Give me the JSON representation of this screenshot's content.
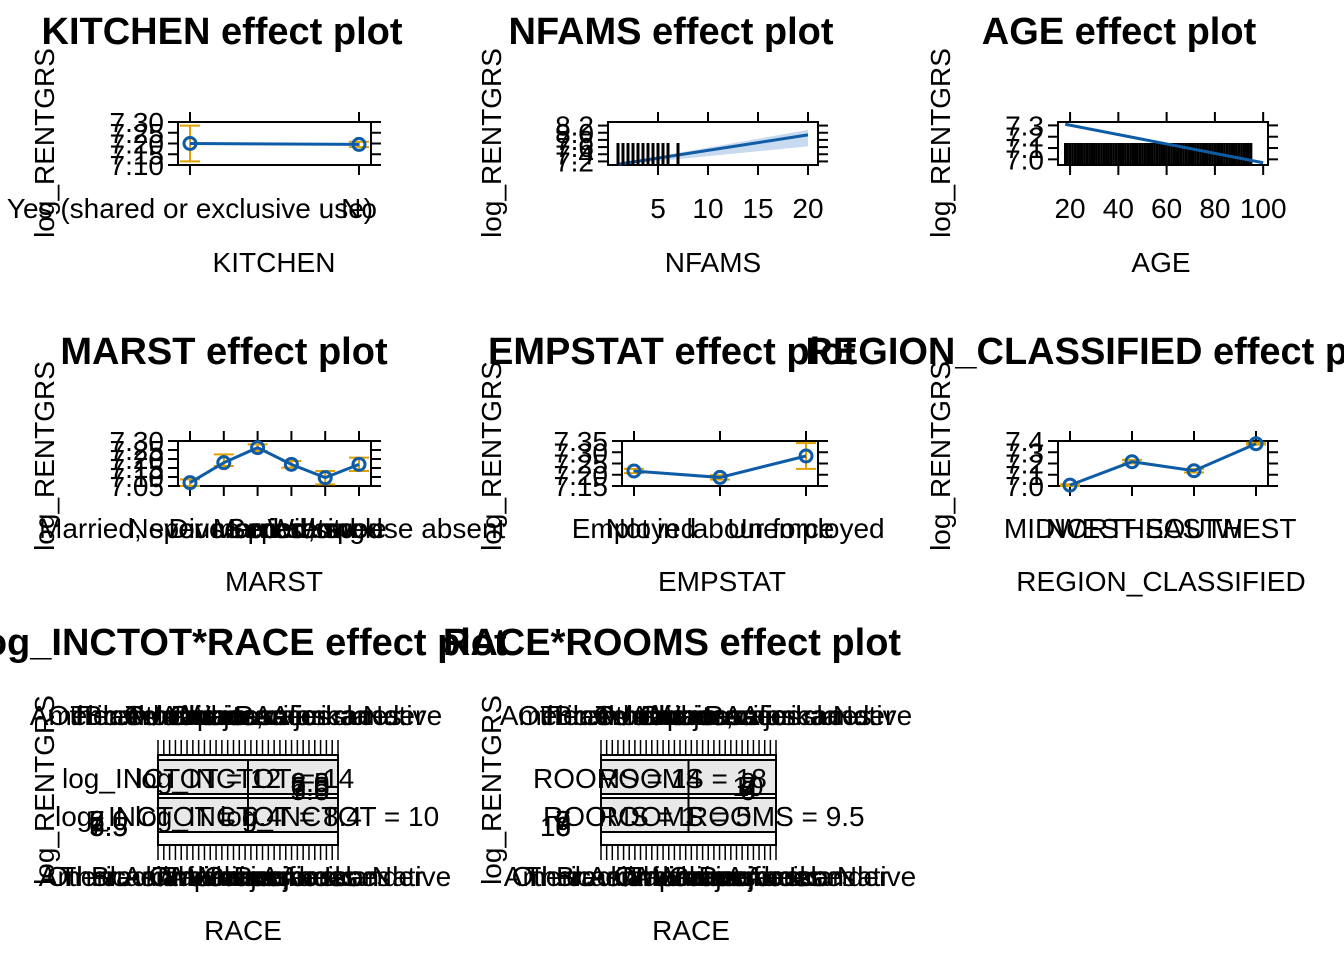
{
  "colors": {
    "line": "#0f5ca6",
    "band": "#c8daef",
    "error": "#e0a000",
    "rug": "#000000"
  },
  "panels": [
    {
      "title": "KITCHEN effect plot",
      "ylabel": "log_RENTGRS",
      "xlabel": "KITCHEN",
      "kind": "factor",
      "x_ticks": [
        "Yes (shared or exclusive use)",
        "No"
      ],
      "y_ticks": [
        "7.10",
        "7.15",
        "7.20",
        "7.25",
        "7.30"
      ]
    },
    {
      "title": "NFAMS effect plot",
      "ylabel": "log_RENTGRS",
      "xlabel": "NFAMS",
      "kind": "numeric",
      "x_ticks": [
        "5",
        "10",
        "15",
        "20"
      ],
      "y_ticks": [
        "7.2",
        "7.4",
        "7.6",
        "7.8",
        "8.0",
        "8.2"
      ]
    },
    {
      "title": "AGE effect plot",
      "ylabel": "log_RENTGRS",
      "xlabel": "AGE",
      "kind": "numeric",
      "x_ticks": [
        "20",
        "40",
        "60",
        "80",
        "100"
      ],
      "y_ticks": [
        "7.0",
        "7.1",
        "7.2",
        "7.3"
      ]
    },
    {
      "title": "MARST effect plot",
      "ylabel": "log_RENTGRS",
      "xlabel": "MARST",
      "kind": "factor",
      "x_ticks": [
        "Married, spouse present",
        "Divorced",
        "Never married/single",
        "Separated",
        "Widowed",
        "Married, spouse absent"
      ],
      "y_ticks": [
        "7.05",
        "7.10",
        "7.15",
        "7.20",
        "7.25",
        "7.30"
      ]
    },
    {
      "title": "EMPSTAT effect plot",
      "ylabel": "log_RENTGRS",
      "xlabel": "EMPSTAT",
      "kind": "factor",
      "x_ticks": [
        "Employed",
        "Not in labour force",
        "Unemployed"
      ],
      "y_ticks": [
        "7.15",
        "7.20",
        "7.25",
        "7.30",
        "7.35"
      ]
    },
    {
      "title": "REGION_CLASSIFIED effect plot",
      "ylabel": "log_RENTGRS",
      "xlabel": "REGION_CLASSIFIED",
      "kind": "factor",
      "x_ticks": [
        "MIDWEST",
        "NORTHEAST",
        "SOUTH",
        "WEST"
      ],
      "y_ticks": [
        "7.0",
        "7.1",
        "7.2",
        "7.3",
        "7.4"
      ]
    },
    {
      "title": "log_INCTOT*RACE effect plot",
      "ylabel": "log_RENTGRS",
      "xlabel": "RACE",
      "kind": "lattice",
      "strips": [
        "log_INCTOT = 12",
        "log_INCTOT = 14",
        "log_INCTOT = 6.4",
        "log_INCTOT = 8.4",
        "log_INCTOT = 10"
      ],
      "y_ticks": [
        "5.5",
        "6.0",
        "6.5",
        "7.0",
        "7.5",
        "8.0"
      ],
      "race_labels": [
        "White",
        "Black/African American",
        "American Indian or Alaska Native",
        "Chinese",
        "Japanese",
        "Other Asian or Pacific Islander",
        "Other race, nec",
        "Two major races",
        "Three or more major races"
      ]
    },
    {
      "title": "RACE*ROOMS effect plot",
      "ylabel": "log_RENTGRS",
      "xlabel": "RACE",
      "kind": "lattice",
      "strips": [
        "ROOMS = 14",
        "ROOMS = 18",
        "ROOMS = 1",
        "ROOMS = 5",
        "ROOMS = 9.5"
      ],
      "y_ticks": [
        "6",
        "7",
        "8",
        "9",
        "10"
      ],
      "race_labels": [
        "White",
        "Black/African American",
        "American Indian or Alaska Native",
        "Chinese",
        "Japanese",
        "Other Asian or Pacific Islander",
        "Other race, nec",
        "Two major races",
        "Three or more major races"
      ]
    }
  ],
  "chart_data": [
    {
      "type": "line",
      "title": "KITCHEN effect plot",
      "xlabel": "KITCHEN",
      "ylabel": "log_RENTGRS",
      "categories": [
        "Yes (shared or exclusive use)",
        "No"
      ],
      "values": [
        7.2,
        7.195
      ],
      "lower": [
        7.1,
        7.18
      ],
      "upper": [
        7.3,
        7.21
      ],
      "ylim": [
        7.08,
        7.32
      ]
    },
    {
      "type": "line",
      "title": "NFAMS effect plot",
      "xlabel": "NFAMS",
      "ylabel": "log_RENTGRS",
      "x": [
        1,
        20
      ],
      "y": [
        7.12,
        7.94
      ],
      "band_lower": [
        7.1,
        7.62
      ],
      "band_upper": [
        7.14,
        8.08
      ],
      "xlim": [
        0,
        21
      ],
      "ylim": [
        7.1,
        8.3
      ],
      "rug": [
        1,
        1.5,
        2,
        2.5,
        3,
        3.5,
        4,
        4.5,
        5,
        5.5,
        6,
        7
      ]
    },
    {
      "type": "line",
      "title": "AGE effect plot",
      "xlabel": "AGE",
      "ylabel": "log_RENTGRS",
      "x": [
        18,
        100
      ],
      "y": [
        7.31,
        6.97
      ],
      "xlim": [
        15,
        102
      ],
      "ylim": [
        6.95,
        7.33
      ]
    },
    {
      "type": "line",
      "title": "MARST effect plot",
      "xlabel": "MARST",
      "ylabel": "log_RENTGRS",
      "categories": [
        "Married, spouse present",
        "Divorced",
        "Never married/single",
        "Separated",
        "Widowed",
        "Married, spouse absent"
      ],
      "values": [
        7.05,
        7.17,
        7.26,
        7.16,
        7.08,
        7.16
      ],
      "lower": [
        7.03,
        7.15,
        7.24,
        7.14,
        7.04,
        7.12
      ],
      "upper": [
        7.07,
        7.22,
        7.28,
        7.18,
        7.12,
        7.2
      ],
      "ylim": [
        7.03,
        7.3
      ]
    },
    {
      "type": "line",
      "title": "EMPSTAT effect plot",
      "xlabel": "EMPSTAT",
      "ylabel": "log_RENTGRS",
      "categories": [
        "Employed",
        "Not in labour force",
        "Unemployed"
      ],
      "values": [
        7.22,
        7.19,
        7.29
      ],
      "lower": [
        7.21,
        7.18,
        7.23
      ],
      "upper": [
        7.23,
        7.2,
        7.35
      ],
      "ylim": [
        7.15,
        7.36
      ]
    },
    {
      "type": "line",
      "title": "REGION_CLASSIFIED effect plot",
      "xlabel": "REGION_CLASSIFIED",
      "ylabel": "log_RENTGRS",
      "categories": [
        "MIDWEST",
        "NORTHEAST",
        "SOUTH",
        "WEST"
      ],
      "values": [
        6.96,
        7.22,
        7.12,
        7.42
      ],
      "lower": [
        6.95,
        7.2,
        7.1,
        7.41
      ],
      "upper": [
        6.97,
        7.24,
        7.14,
        7.43
      ],
      "ylim": [
        6.95,
        7.45
      ]
    }
  ]
}
